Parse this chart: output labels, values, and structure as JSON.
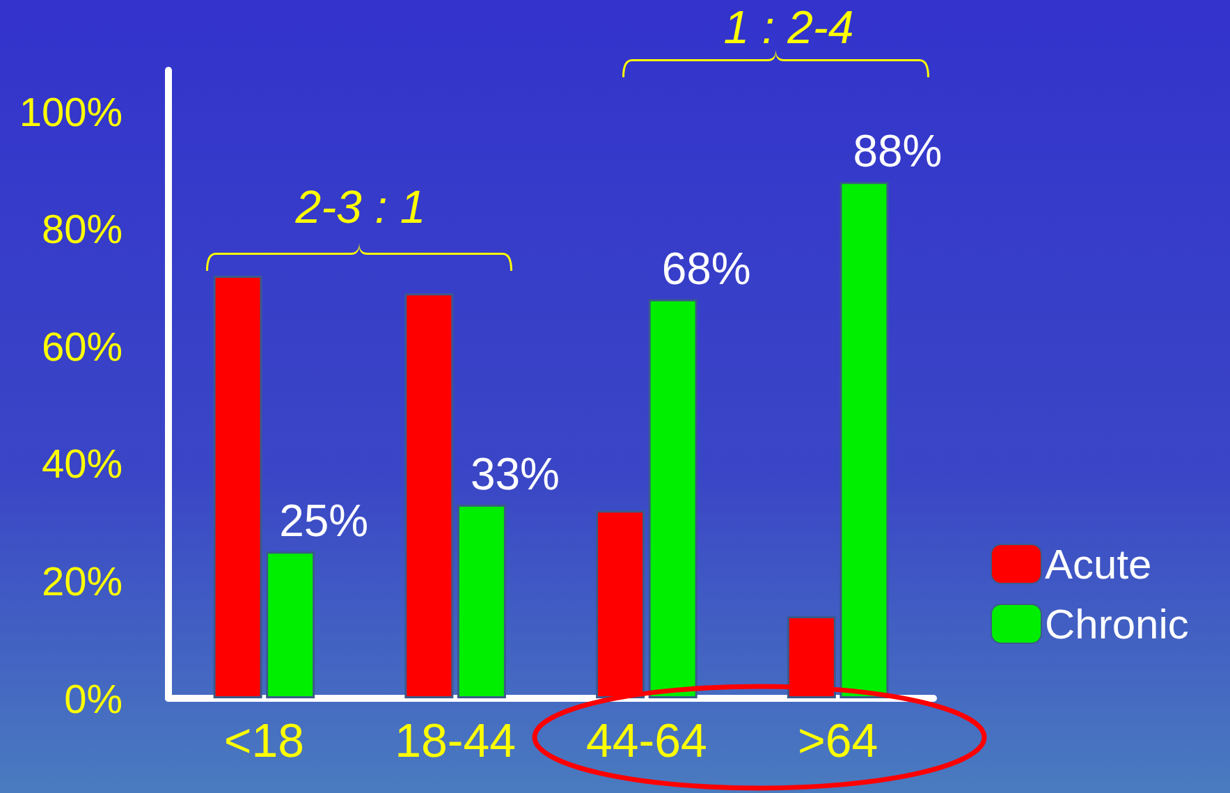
{
  "chart_data": {
    "type": "bar",
    "categories": [
      "<18",
      "18-44",
      "44-64",
      ">64"
    ],
    "series": [
      {
        "name": "Acute",
        "color": "#ff0000",
        "values": [
          72,
          69,
          32,
          14
        ]
      },
      {
        "name": "Chronic",
        "color": "#00ee00",
        "values": [
          25,
          33,
          68,
          88
        ],
        "value_labels": [
          "25%",
          "33%",
          "68%",
          "88%"
        ]
      }
    ],
    "ylim": [
      0,
      107
    ],
    "yticks": [
      {
        "value": 0,
        "label": "0%"
      },
      {
        "value": 20,
        "label": "20%"
      },
      {
        "value": 40,
        "label": "40%"
      },
      {
        "value": 60,
        "label": "60%"
      },
      {
        "value": 80,
        "label": "80%"
      },
      {
        "value": 100,
        "label": "100%"
      }
    ],
    "grid": false,
    "legend": "right",
    "annotations": [
      "2-3 : 1",
      "1 : 2-4"
    ]
  }
}
